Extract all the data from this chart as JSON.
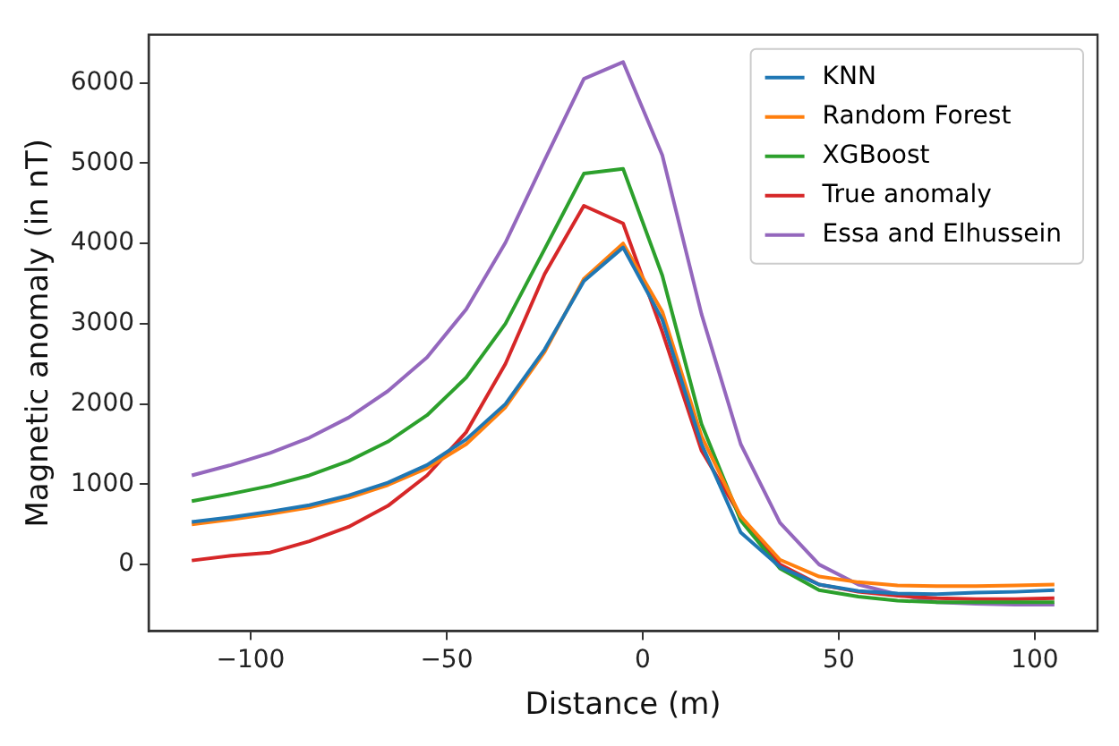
{
  "chart_data": {
    "type": "line",
    "xlabel": "Distance (m)",
    "ylabel": "Magnetic anomaly (in nT)",
    "x": [
      -115,
      -105,
      -95,
      -85,
      -75,
      -65,
      -55,
      -45,
      -35,
      -25,
      -15,
      -5,
      5,
      15,
      25,
      35,
      45,
      55,
      65,
      75,
      85,
      95,
      105
    ],
    "series": [
      {
        "name": "KNN",
        "color": "#1f77b4",
        "values": [
          530,
          590,
          660,
          740,
          860,
          1020,
          1240,
          1560,
          2000,
          2680,
          3530,
          3950,
          3050,
          1500,
          400,
          -30,
          -250,
          -330,
          -360,
          -370,
          -350,
          -340,
          -320
        ]
      },
      {
        "name": "Random Forest",
        "color": "#ff7f0e",
        "values": [
          500,
          560,
          630,
          710,
          830,
          990,
          1200,
          1500,
          1960,
          2650,
          3560,
          4000,
          3150,
          1600,
          600,
          60,
          -150,
          -220,
          -260,
          -270,
          -270,
          -260,
          -250
        ]
      },
      {
        "name": "XGBoost",
        "color": "#2ca02c",
        "values": [
          790,
          880,
          980,
          1110,
          1290,
          1530,
          1860,
          2330,
          3000,
          3930,
          4870,
          4930,
          3600,
          1750,
          550,
          -50,
          -320,
          -400,
          -450,
          -470,
          -470,
          -470,
          -470
        ]
      },
      {
        "name": "True anomaly",
        "color": "#d62728",
        "values": [
          50,
          110,
          150,
          290,
          470,
          730,
          1110,
          1650,
          2500,
          3620,
          4470,
          4250,
          2900,
          1420,
          600,
          0,
          -250,
          -340,
          -390,
          -420,
          -430,
          -430,
          -420
        ]
      },
      {
        "name": "Essa and Elhussein",
        "color": "#9467bd",
        "values": [
          1110,
          1240,
          1390,
          1580,
          1830,
          2160,
          2580,
          3180,
          4010,
          5040,
          6050,
          6260,
          5100,
          3120,
          1500,
          520,
          0,
          -250,
          -370,
          -470,
          -490,
          -500,
          -500
        ]
      }
    ],
    "xlim": [
      -126,
      116
    ],
    "ylim": [
      -830,
      6600
    ],
    "xticks": [
      {
        "value": -100,
        "label": "−100"
      },
      {
        "value": -50,
        "label": "−50"
      },
      0,
      50,
      100
    ],
    "yticks": [
      0,
      1000,
      2000,
      3000,
      4000,
      5000,
      6000
    ],
    "grid": false,
    "legend": "top right",
    "marker": "none",
    "line_style": "solid"
  }
}
